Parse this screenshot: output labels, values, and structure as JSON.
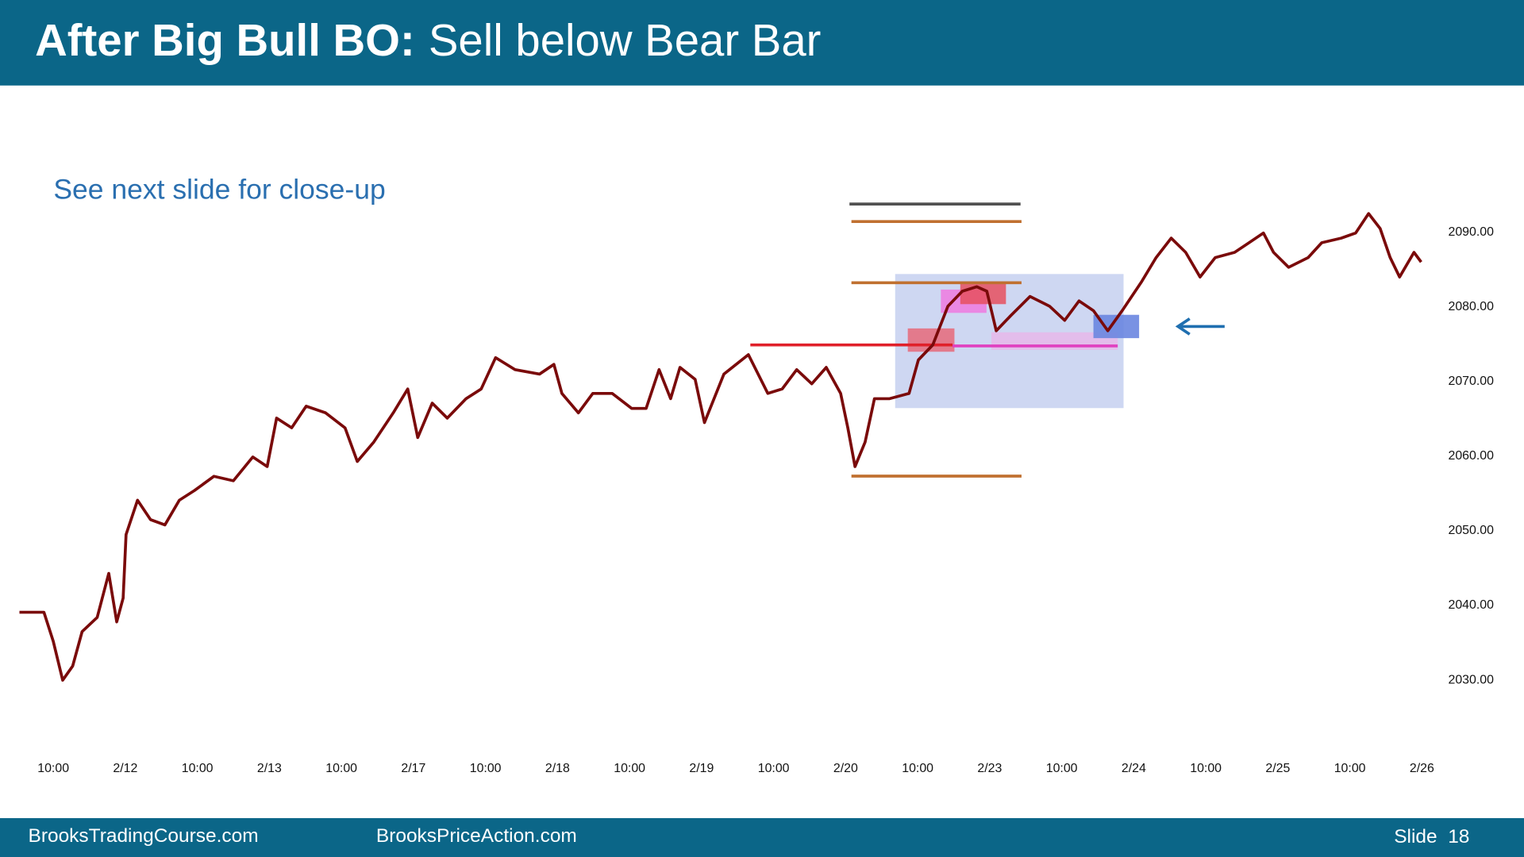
{
  "header": {
    "title_bold": "After Big Bull BO:",
    "title": "Sell below Bear Bar"
  },
  "chart_data": {
    "type": "line",
    "annotation": "See next slide for close-up",
    "color": "#7a0a0a",
    "x": [
      -0.47,
      -0.13,
      0,
      0.13,
      0.27,
      0.4,
      0.61,
      0.77,
      0.88,
      0.97,
      1.01,
      1.17,
      1.35,
      1.55,
      1.75,
      1.96,
      2.23,
      2.5,
      2.77,
      2.97,
      3.1,
      3.31,
      3.51,
      3.78,
      4.05,
      4.22,
      4.45,
      4.72,
      4.92,
      5.06,
      5.26,
      5.47,
      5.73,
      5.94,
      6.14,
      6.41,
      6.75,
      6.95,
      7.06,
      7.29,
      7.49,
      7.76,
      8.03,
      8.23,
      8.41,
      8.57,
      8.7,
      8.91,
      9.04,
      9.31,
      9.65,
      9.92,
      10.12,
      10.32,
      10.53,
      10.73,
      10.93,
      11.03,
      11.13,
      11.27,
      11.4,
      11.61,
      11.88,
      12.01,
      12.21,
      12.42,
      12.62,
      12.82,
      12.96,
      13.09,
      13.29,
      13.56,
      13.83,
      14.04,
      14.24,
      14.44,
      14.64,
      14.84,
      15.11,
      15.31,
      15.52,
      15.72,
      15.92,
      16.13,
      16.4,
      16.6,
      16.8,
      16.94,
      17.15,
      17.42,
      17.61,
      17.88,
      18.08,
      18.26,
      18.42,
      18.56,
      18.69,
      18.89,
      18.99
    ],
    "values": [
      2039.1,
      2039.1,
      2035.2,
      2030.0,
      2031.9,
      2036.5,
      2038.4,
      2044.3,
      2037.8,
      2041.0,
      2049.5,
      2054.1,
      2051.5,
      2050.8,
      2054.1,
      2055.4,
      2057.3,
      2056.7,
      2059.9,
      2058.6,
      2065.1,
      2063.8,
      2066.7,
      2065.8,
      2063.8,
      2059.3,
      2061.9,
      2065.8,
      2069.0,
      2062.5,
      2067.1,
      2065.1,
      2067.7,
      2069.0,
      2073.2,
      2071.6,
      2071.0,
      2072.3,
      2068.4,
      2065.8,
      2068.4,
      2068.4,
      2066.4,
      2066.4,
      2071.6,
      2067.7,
      2071.9,
      2070.3,
      2064.5,
      2071.0,
      2073.6,
      2068.4,
      2069.0,
      2071.6,
      2069.7,
      2071.9,
      2068.4,
      2063.8,
      2058.6,
      2061.9,
      2067.7,
      2067.7,
      2068.4,
      2072.9,
      2074.9,
      2080.1,
      2082.1,
      2082.7,
      2082.1,
      2076.8,
      2078.8,
      2081.4,
      2080.1,
      2078.2,
      2080.8,
      2079.5,
      2076.8,
      2079.5,
      2083.4,
      2086.6,
      2089.2,
      2087.3,
      2084.0,
      2086.6,
      2087.3,
      2088.6,
      2089.9,
      2087.3,
      2085.3,
      2086.6,
      2088.6,
      2089.2,
      2089.9,
      2092.5,
      2090.5,
      2086.6,
      2084.0,
      2087.3,
      2086.0
    ],
    "xlim": [
      -0.47,
      19.23
    ],
    "xticks": [
      {
        "value": 0,
        "label": "10:00"
      },
      {
        "value": 1,
        "label": "2/12"
      },
      {
        "value": 2,
        "label": "10:00"
      },
      {
        "value": 3,
        "label": "2/13"
      },
      {
        "value": 4,
        "label": "10:00"
      },
      {
        "value": 5,
        "label": "2/17"
      },
      {
        "value": 6,
        "label": "10:00"
      },
      {
        "value": 7,
        "label": "2/18"
      },
      {
        "value": 8,
        "label": "10:00"
      },
      {
        "value": 9,
        "label": "2/19"
      },
      {
        "value": 10,
        "label": "10:00"
      },
      {
        "value": 11,
        "label": "2/20"
      },
      {
        "value": 12,
        "label": "10:00"
      },
      {
        "value": 13,
        "label": "2/23"
      },
      {
        "value": 14,
        "label": "10:00"
      },
      {
        "value": 15,
        "label": "2/24"
      },
      {
        "value": 16,
        "label": "10:00"
      },
      {
        "value": 17,
        "label": "2/25"
      },
      {
        "value": 18,
        "label": "10:00"
      },
      {
        "value": 19,
        "label": "2/26"
      }
    ],
    "ylim": [
      2020,
      2096
    ],
    "yticks": [
      {
        "value": 2030,
        "label": "2030.00"
      },
      {
        "value": 2040,
        "label": "2040.00"
      },
      {
        "value": 2050,
        "label": "2050.00"
      },
      {
        "value": 2060,
        "label": "2060.00"
      },
      {
        "value": 2070,
        "label": "2070.00"
      },
      {
        "value": 2080,
        "label": "2080.00"
      },
      {
        "value": 2090,
        "label": "2090.00"
      }
    ],
    "grid": false
  },
  "footer": {
    "left": "BrooksTradingCourse.com",
    "middle": "BrooksPriceAction.com",
    "right": "Slide  18"
  }
}
